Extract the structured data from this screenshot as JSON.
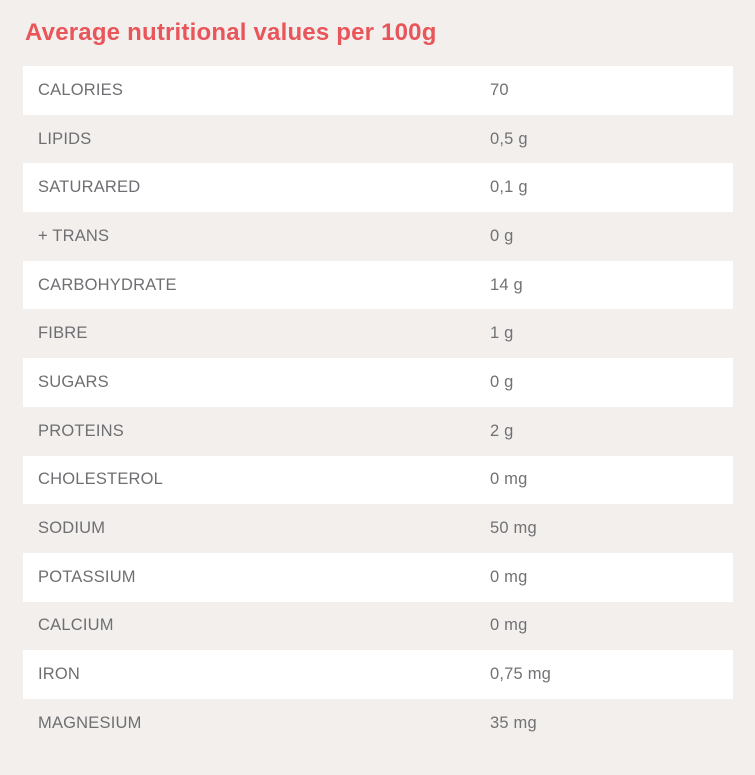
{
  "title": "Average nutritional values per 100g",
  "colors": {
    "accent": "#e8555b",
    "page_background": "#f3efec",
    "row_alternate_background": "#ffffff",
    "row_text": "#6e6f72"
  },
  "table": {
    "rows": [
      {
        "label": "CALORIES",
        "value": "70"
      },
      {
        "label": "LIPIDS",
        "value": "0,5 g"
      },
      {
        "label": "SATURARED",
        "value": "0,1 g"
      },
      {
        "label": "+ TRANS",
        "value": "0 g"
      },
      {
        "label": "CARBOHYDRATE",
        "value": "14 g"
      },
      {
        "label": "FIBRE",
        "value": "1 g"
      },
      {
        "label": "SUGARS",
        "value": "0 g"
      },
      {
        "label": "PROTEINS",
        "value": "2 g"
      },
      {
        "label": "CHOLESTEROL",
        "value": "0 mg"
      },
      {
        "label": "SODIUM",
        "value": "50 mg"
      },
      {
        "label": "POTASSIUM",
        "value": "0 mg"
      },
      {
        "label": "CALCIUM",
        "value": "0 mg"
      },
      {
        "label": "IRON",
        "value": "0,75 mg"
      },
      {
        "label": "MAGNESIUM",
        "value": "35 mg"
      }
    ]
  }
}
